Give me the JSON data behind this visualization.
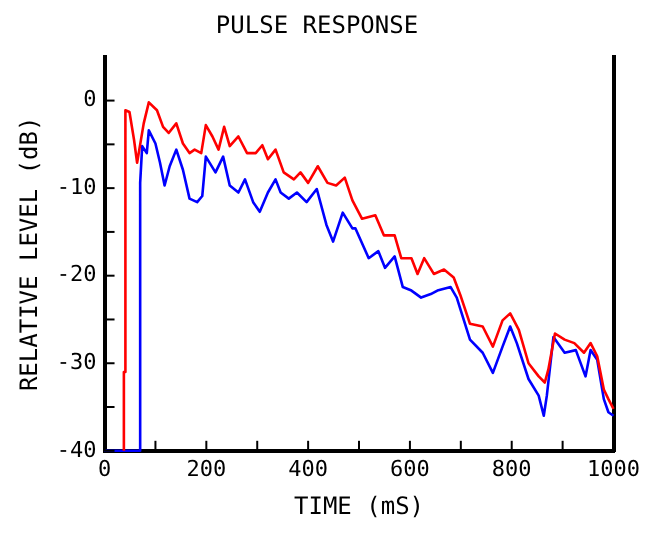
{
  "chart_data": {
    "type": "line",
    "title": "PULSE RESPONSE",
    "xlabel": "TIME (mS)",
    "ylabel": "RELATIVE LEVEL (dB)",
    "xlim": [
      0,
      1000
    ],
    "ylim": [
      -40,
      5
    ],
    "xticks": [
      0,
      {
        "value": 100,
        "label": null
      },
      200,
      {
        "value": 300,
        "label": null
      },
      400,
      {
        "value": 500,
        "label": null
      },
      600,
      {
        "value": 700,
        "label": null
      },
      800,
      {
        "value": 900,
        "label": null
      },
      1000
    ],
    "yticks": [
      -40,
      {
        "value": -35,
        "label": null
      },
      -30,
      {
        "value": -25,
        "label": null
      },
      -20,
      {
        "value": -15,
        "label": null
      },
      -10,
      {
        "value": -5,
        "label": null
      },
      0
    ],
    "grid": false,
    "legend": false,
    "marker": "none",
    "line_style": "solid",
    "series": [
      {
        "color": "#ff0000",
        "x": [
          38,
          38,
          41,
          41,
          49,
          58,
          64,
          77,
          87,
          103,
          115,
          126,
          141,
          154,
          167,
          177,
          190,
          199,
          212,
          224,
          235,
          246,
          263,
          280,
          297,
          310,
          321,
          336,
          352,
          372,
          385,
          400,
          419,
          438,
          455,
          472,
          487,
          506,
          532,
          549,
          570,
          583,
          603,
          615,
          628,
          647,
          667,
          686,
          699,
          718,
          743,
          763,
          782,
          797,
          814,
          833,
          853,
          865,
          872,
          885,
          904,
          923,
          942,
          955,
          968,
          981,
          990,
          1000
        ],
        "values": [
          -40,
          -31,
          -31,
          -1.1,
          -1.3,
          -4.5,
          -7.1,
          -2.6,
          -0.2,
          -1.1,
          -3,
          -3.7,
          -2.6,
          -4.9,
          -6,
          -5.6,
          -6,
          -2.8,
          -4.1,
          -5.6,
          -3,
          -5.2,
          -4.1,
          -6,
          -6,
          -5.1,
          -6.7,
          -5.6,
          -8.2,
          -9,
          -8.2,
          -9.4,
          -7.5,
          -9.4,
          -9.7,
          -8.8,
          -11.4,
          -13.5,
          -13.1,
          -15.4,
          -15.4,
          -18,
          -18,
          -19.8,
          -18,
          -19.8,
          -19.3,
          -20.2,
          -22.2,
          -25.5,
          -25.8,
          -28.1,
          -25.1,
          -24.3,
          -26.2,
          -30,
          -31.5,
          -32.2,
          -30.7,
          -26.6,
          -27.3,
          -27.7,
          -28.8,
          -27.7,
          -29.2,
          -33,
          -34.1,
          -35.2
        ]
      },
      {
        "color": "#0000ff",
        "x": [
          0,
          70,
          70,
          74,
          83,
          87,
          100,
          109,
          118,
          128,
          141,
          154,
          167,
          182,
          192,
          199,
          218,
          233,
          246,
          263,
          276,
          292,
          305,
          321,
          336,
          346,
          362,
          378,
          397,
          417,
          436,
          449,
          468,
          487,
          493,
          519,
          538,
          551,
          570,
          586,
          603,
          622,
          641,
          654,
          680,
          692,
          718,
          743,
          763,
          782,
          797,
          810,
          833,
          853,
          863,
          869,
          882,
          904,
          926,
          945,
          955,
          968,
          981,
          990,
          1000
        ],
        "values": [
          -40,
          -40,
          -9.4,
          -5.2,
          -6,
          -3.4,
          -4.9,
          -7.1,
          -9.7,
          -7.5,
          -5.6,
          -7.9,
          -11.2,
          -11.6,
          -10.9,
          -6.4,
          -8.2,
          -6.4,
          -9.7,
          -10.5,
          -9,
          -11.6,
          -12.7,
          -10.5,
          -9,
          -10.5,
          -11.2,
          -10.5,
          -11.6,
          -10.1,
          -14.2,
          -16.1,
          -12.8,
          -14.6,
          -14.6,
          -18,
          -17.2,
          -19.1,
          -17.8,
          -21.3,
          -21.7,
          -22.5,
          -22.1,
          -21.7,
          -21.3,
          -22.5,
          -27.3,
          -28.8,
          -31.1,
          -28.1,
          -25.8,
          -27.7,
          -31.8,
          -33.7,
          -36,
          -33.7,
          -27,
          -28.8,
          -28.5,
          -31.5,
          -28.5,
          -29.6,
          -34.1,
          -35.6,
          -36
        ]
      }
    ]
  }
}
